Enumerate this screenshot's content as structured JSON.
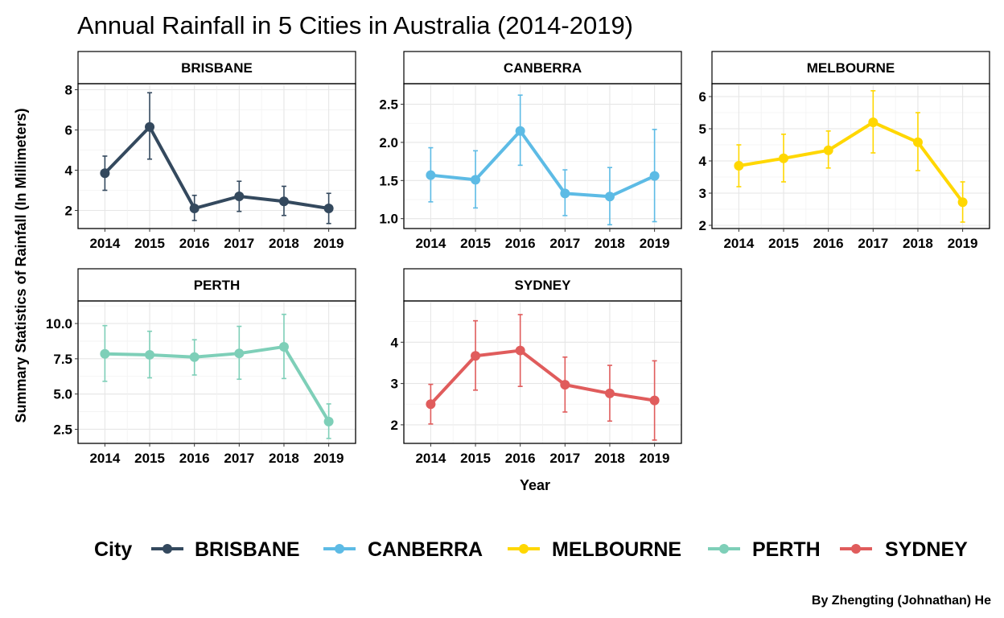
{
  "chart_data": {
    "type": "line",
    "title": "Annual Rainfall in 5 Cities in Australia (2014-2019)",
    "xlabel": "Year",
    "ylabel": "Summary Statistics of Rainfall (In Millimeters)",
    "caption": "By Zhengting (Johnathan) He",
    "legend_title": "City",
    "legend_position": "bottom",
    "grid": true,
    "error_bars": true,
    "x": [
      "2014",
      "2015",
      "2016",
      "2017",
      "2018",
      "2019"
    ],
    "panels": [
      {
        "name": "BRISBANE",
        "color": "#34495e",
        "ylim": [
          1.1,
          8.3
        ],
        "yticks": [
          2,
          4,
          6,
          8
        ],
        "ytick_labels": [
          "2",
          "4",
          "6",
          "8"
        ],
        "values": [
          3.85,
          6.15,
          2.1,
          2.7,
          2.45,
          2.1
        ],
        "lower": [
          3.0,
          4.55,
          1.5,
          1.95,
          1.75,
          1.35
        ],
        "upper": [
          4.7,
          7.85,
          2.75,
          3.45,
          3.2,
          2.85
        ]
      },
      {
        "name": "CANBERRA",
        "color": "#5dbbe5",
        "ylim": [
          0.87,
          2.77
        ],
        "yticks": [
          1.0,
          1.5,
          2.0,
          2.5
        ],
        "ytick_labels": [
          "1.0",
          "1.5",
          "2.0",
          "2.5"
        ],
        "values": [
          1.57,
          1.51,
          2.15,
          1.33,
          1.29,
          1.56
        ],
        "lower": [
          1.22,
          1.14,
          1.7,
          1.04,
          0.92,
          0.96
        ],
        "upper": [
          1.93,
          1.89,
          2.62,
          1.64,
          1.67,
          2.17
        ]
      },
      {
        "name": "MELBOURNE",
        "color": "#ffd700",
        "ylim": [
          1.9,
          6.4
        ],
        "yticks": [
          2,
          3,
          4,
          5,
          6
        ],
        "ytick_labels": [
          "2",
          "3",
          "4",
          "5",
          "6"
        ],
        "values": [
          3.85,
          4.08,
          4.33,
          5.2,
          4.58,
          2.72
        ],
        "lower": [
          3.2,
          3.35,
          3.78,
          4.25,
          3.7,
          2.1
        ],
        "upper": [
          4.5,
          4.83,
          4.93,
          6.18,
          5.5,
          3.35
        ]
      },
      {
        "name": "PERTH",
        "color": "#7ecfb8",
        "ylim": [
          1.5,
          11.6
        ],
        "yticks": [
          2.5,
          5.0,
          7.5,
          10.0
        ],
        "ytick_labels": [
          "2.5",
          "5.0",
          "7.5",
          "10.0"
        ],
        "values": [
          7.85,
          7.78,
          7.62,
          7.88,
          8.35,
          3.05
        ],
        "lower": [
          5.9,
          6.15,
          6.35,
          6.05,
          6.1,
          1.85
        ],
        "upper": [
          9.85,
          9.45,
          8.85,
          9.8,
          10.65,
          4.3
        ]
      },
      {
        "name": "SYDNEY",
        "color": "#e05c5c",
        "ylim": [
          1.55,
          5.0
        ],
        "yticks": [
          2,
          3,
          4
        ],
        "ytick_labels": [
          "2",
          "3",
          "4"
        ],
        "values": [
          2.5,
          3.67,
          3.8,
          2.97,
          2.76,
          2.59
        ],
        "lower": [
          2.02,
          2.84,
          2.93,
          2.31,
          2.09,
          1.63
        ],
        "upper": [
          2.98,
          4.52,
          4.67,
          3.64,
          3.44,
          3.55
        ]
      }
    ]
  }
}
